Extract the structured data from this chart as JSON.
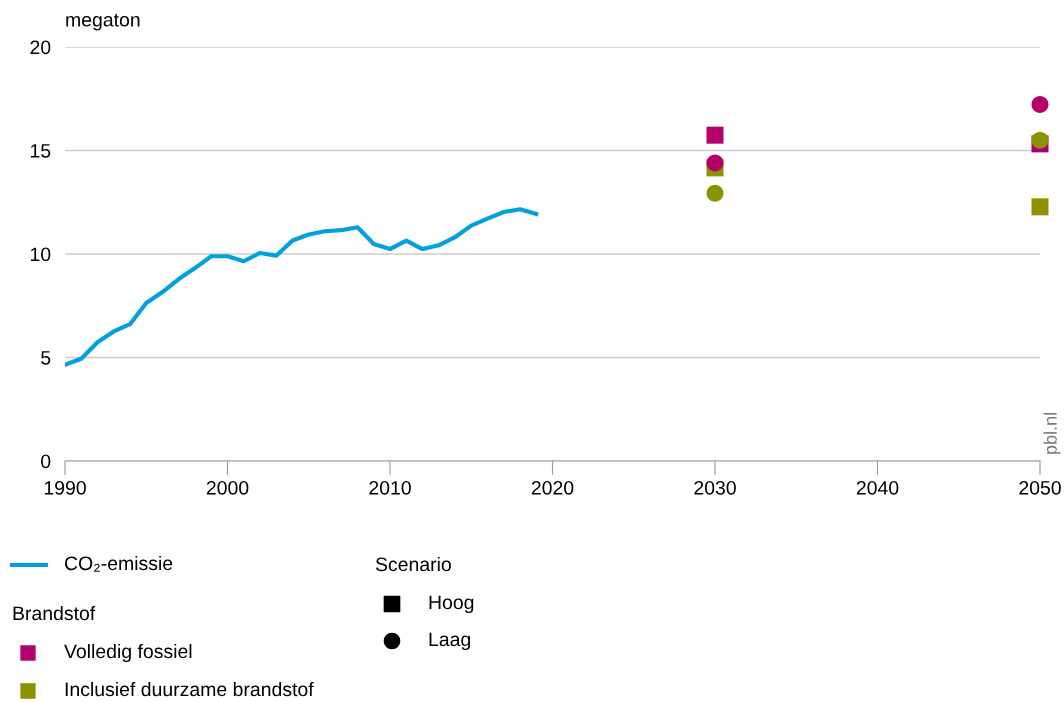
{
  "chart_data": {
    "type": "scatter",
    "ylabel": "megaton",
    "legend_title": "Brandstof",
    "xlim": [
      1990,
      2050
    ],
    "xticks": [
      1990,
      2000,
      2010,
      2020,
      2030,
      2040,
      2050
    ],
    "ylim": [
      0,
      20
    ],
    "yticks": [
      0,
      5,
      10,
      15,
      20
    ],
    "grid": "y",
    "legend": "bottom",
    "annotations": [
      "pbl.nl",
      "Scenario",
      "Hoog",
      "Laag"
    ],
    "series": [
      {
        "name": "CO₂-emissie",
        "type": "line",
        "color": "#00a0e1",
        "marker": "none",
        "x": [
          1990,
          1991,
          1992,
          1993,
          1994,
          1995,
          1996,
          1997,
          1998,
          1999,
          2000,
          2001,
          2002,
          2003,
          2004,
          2005,
          2006,
          2007,
          2008,
          2009,
          2010,
          2011,
          2012,
          2013,
          2014,
          2015,
          2016,
          2017,
          2018,
          2019
        ],
        "values": [
          4.65,
          4.94,
          5.74,
          6.26,
          6.61,
          7.63,
          8.16,
          8.79,
          9.32,
          9.89,
          9.89,
          9.65,
          10.05,
          9.92,
          10.65,
          10.94,
          11.1,
          11.15,
          11.29,
          10.48,
          10.24,
          10.65,
          10.24,
          10.42,
          10.81,
          11.37,
          11.71,
          12.03,
          12.16,
          11.94
        ]
      },
      {
        "name": "Volledig fossiel",
        "color": "#b5006b",
        "marker": "square",
        "x": [
          2030,
          2050
        ],
        "values": [
          15.74,
          15.32
        ]
      },
      {
        "name": "Inclusief duurzame brandstof",
        "color": "#8c9300",
        "marker": "square",
        "x": [
          2030,
          2050
        ],
        "values": [
          14.16,
          12.28
        ]
      },
      {
        "color": "#b5006b",
        "marker": "circle",
        "x": [
          2030,
          2050
        ],
        "values": [
          14.4,
          17.22
        ]
      },
      {
        "color": "#8c9300",
        "marker": "circle",
        "x": [
          2030,
          2050
        ],
        "values": [
          12.94,
          15.5
        ]
      }
    ]
  }
}
